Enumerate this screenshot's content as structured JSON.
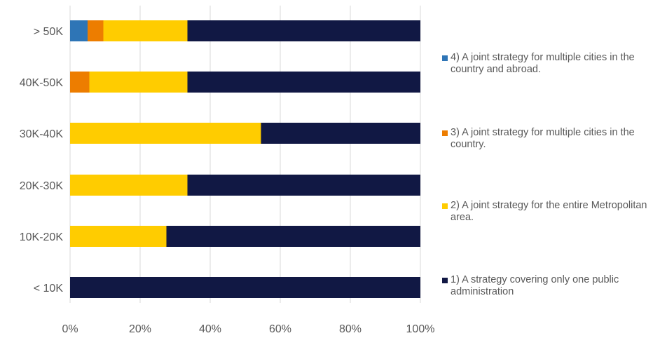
{
  "chart_data": {
    "type": "bar",
    "orientation": "horizontal",
    "stacked": true,
    "categories": [
      "> 50K",
      "40K-50K",
      "30K-40K",
      "20K-30K",
      "10K-20K",
      "< 10K"
    ],
    "series": [
      {
        "name": "4) A joint strategy for multiple cities in the country and abroad.",
        "color": "#2e75b6",
        "values": [
          5,
          0,
          0,
          0,
          0,
          0
        ]
      },
      {
        "name": "3) A joint strategy for multiple cities in the country.",
        "color": "#ed7d00",
        "values": [
          4.5,
          5.5,
          0,
          0,
          0,
          0
        ]
      },
      {
        "name": "2) A joint strategy for the entire Metropolitan area.",
        "color": "#ffcc00",
        "values": [
          24,
          28,
          54.5,
          33.5,
          27.5,
          0
        ]
      },
      {
        "name": "1) A strategy covering only one public administration",
        "color": "#111844",
        "values": [
          66.5,
          66.5,
          45.5,
          66.5,
          72.5,
          100
        ]
      }
    ],
    "xlim": [
      0,
      100
    ],
    "xticks": [
      "0%",
      "20%",
      "40%",
      "60%",
      "80%",
      "100%"
    ],
    "grid": true,
    "legend_position": "right",
    "title": "",
    "xlabel": "",
    "ylabel": ""
  }
}
